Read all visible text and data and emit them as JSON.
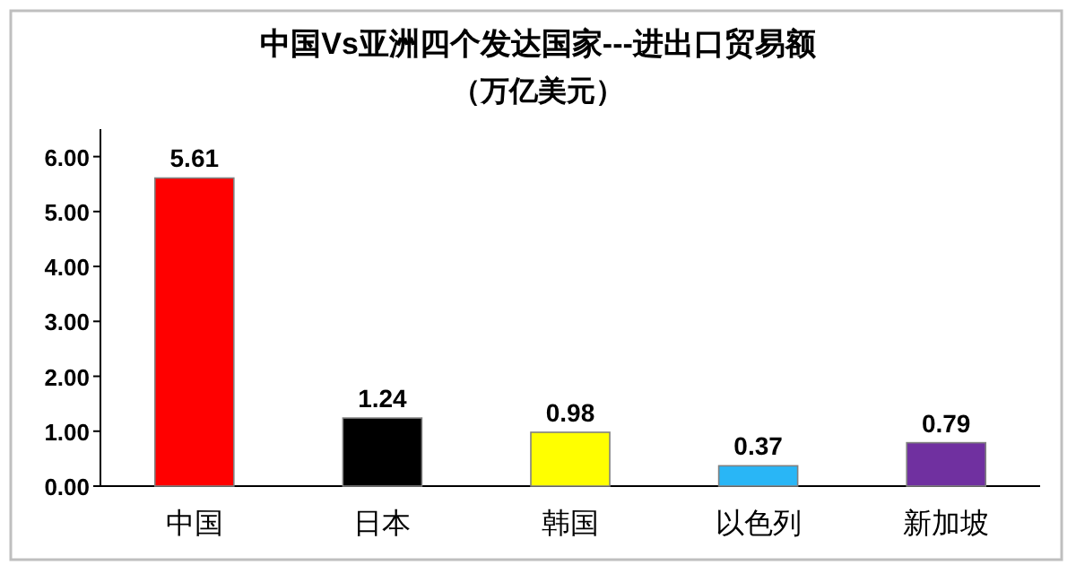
{
  "chart_data": {
    "type": "bar",
    "title": "中国Vs亚洲四个发达国家---进出口贸易额",
    "subtitle": "（万亿美元）",
    "categories": [
      "中国",
      "日本",
      "韩国",
      "以色列",
      "新加坡"
    ],
    "values": [
      5.61,
      1.24,
      0.98,
      0.37,
      0.79
    ],
    "colors": [
      "#ff0000",
      "#000000",
      "#ffff00",
      "#29b6f6",
      "#7030a0"
    ],
    "ylim": [
      0,
      6.5
    ],
    "yticks": [
      {
        "value": 0,
        "label": "0.00"
      },
      {
        "value": 1,
        "label": "1.00"
      },
      {
        "value": 2,
        "label": "2.00"
      },
      {
        "value": 3,
        "label": "3.00"
      },
      {
        "value": 4,
        "label": "4.00"
      },
      {
        "value": 5,
        "label": "5.00"
      },
      {
        "value": 6,
        "label": "6.00"
      }
    ],
    "data_labels": true,
    "grid": false
  }
}
